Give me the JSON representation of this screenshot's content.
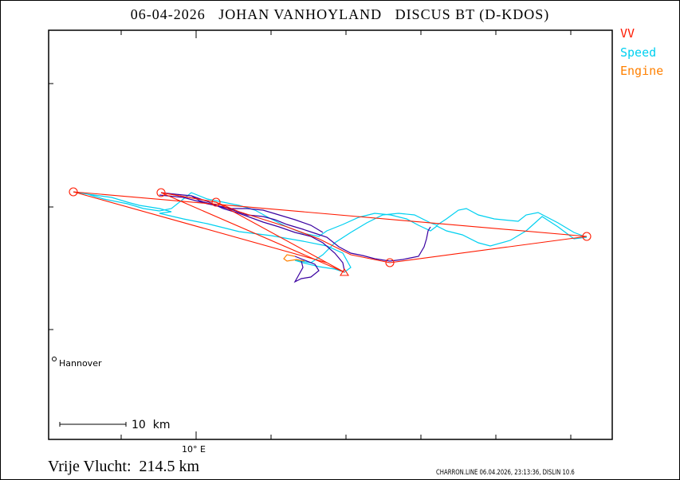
{
  "title": "06-04-2026   JOHAN VANHOYLAND   DISCUS BT (D-KDOS)",
  "legend": [
    {
      "label": "VV",
      "color": "#ff1a00"
    },
    {
      "label": "Speed",
      "color": "#00d0f0"
    },
    {
      "label": "Engine",
      "color": "#ff8000"
    }
  ],
  "axis": {
    "x_major_label": "10° E"
  },
  "places": [
    {
      "name": "Hannover"
    }
  ],
  "scale_bar": {
    "label": "10  km"
  },
  "distance": "Vrije Vlucht:  214.5 km",
  "credit": "CHARRON.LINE 06.04.2026, 23:13:36, DISLIN 10.6",
  "colors": {
    "track": "#3a00a0",
    "task": "#ff1a00",
    "speed": "#00d0f0",
    "engine": "#ff8000"
  }
}
